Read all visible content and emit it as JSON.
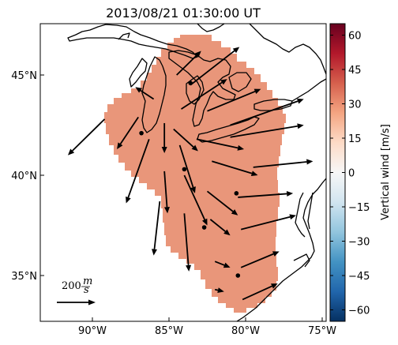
{
  "title": "2013/08/21 01:30:00 UT",
  "map": {
    "lon_range": [
      -94,
      -74.5
    ],
    "lat_range": [
      32.5,
      47.5
    ],
    "x_ticks": [
      {
        "lon": -90,
        "label": "90°W"
      },
      {
        "lon": -85,
        "label": "85°W"
      },
      {
        "lon": -80,
        "label": "80°W"
      },
      {
        "lon": -75,
        "label": "75°W"
      }
    ],
    "y_ticks": [
      {
        "lat": 45,
        "label": "45°N"
      },
      {
        "lat": 40,
        "label": "40°N"
      },
      {
        "lat": 35,
        "label": "35°N"
      }
    ],
    "field_color": "#e9967a",
    "coast_color": "#000000"
  },
  "reference_vector": {
    "label": "200",
    "unit_num": "m",
    "unit_den": "s"
  },
  "colorbar": {
    "label": "Vertical wind [m/s]",
    "min": -65,
    "max": 65,
    "ticks": [
      "60",
      "45",
      "30",
      "15",
      "0",
      "−15",
      "−30",
      "−45",
      "−60"
    ],
    "tick_values": [
      60,
      45,
      30,
      15,
      0,
      -15,
      -30,
      -45,
      -60
    ],
    "colormap": [
      "#053061",
      "#2166ac",
      "#4393c3",
      "#92c5de",
      "#d1e5f0",
      "#f7f7f7",
      "#fddbc7",
      "#f4a582",
      "#d6604d",
      "#b2182b",
      "#67001f"
    ]
  },
  "vectors": [
    {
      "lon": -84.5,
      "lat": 45.0,
      "dlon": 1.6,
      "dlat": 1.2
    },
    {
      "lon": -83.6,
      "lat": 44.5,
      "dlon": 3.2,
      "dlat": 1.9
    },
    {
      "lon": -86.0,
      "lat": 43.8,
      "dlon": -1.2,
      "dlat": 0.6
    },
    {
      "lon": -84.2,
      "lat": 43.3,
      "dlon": 3.0,
      "dlat": 1.5
    },
    {
      "lon": -82.5,
      "lat": 43.2,
      "dlon": 3.5,
      "dlat": 1.1
    },
    {
      "lon": -81.0,
      "lat": 42.5,
      "dlon": 4.8,
      "dlat": 1.3
    },
    {
      "lon": -89.2,
      "lat": 42.8,
      "dlon": -2.4,
      "dlat": -1.8
    },
    {
      "lon": -87.0,
      "lat": 42.9,
      "dlon": -1.4,
      "dlat": -1.6
    },
    {
      "lon": -84.7,
      "lat": 42.3,
      "dlon": 1.6,
      "dlat": -1.1
    },
    {
      "lon": -83.2,
      "lat": 41.8,
      "dlon": 3.1,
      "dlat": -0.5
    },
    {
      "lon": -81.0,
      "lat": 41.9,
      "dlon": 4.8,
      "dlat": 0.6
    },
    {
      "lon": -86.3,
      "lat": 41.8,
      "dlon": -1.5,
      "dlat": -3.2
    },
    {
      "lon": -85.3,
      "lat": 42.6,
      "dlon": 0.0,
      "dlat": -1.5
    },
    {
      "lon": -84.3,
      "lat": 41.5,
      "dlon": 1.0,
      "dlat": -2.4
    },
    {
      "lon": -82.2,
      "lat": 40.7,
      "dlon": 3.0,
      "dlat": -0.7
    },
    {
      "lon": -79.5,
      "lat": 40.4,
      "dlon": 3.9,
      "dlat": 0.3
    },
    {
      "lon": -85.3,
      "lat": 40.2,
      "dlon": 0.2,
      "dlat": -2.1
    },
    {
      "lon": -84.0,
      "lat": 40.0,
      "dlon": 1.5,
      "dlat": -2.5
    },
    {
      "lon": -82.5,
      "lat": 39.2,
      "dlon": 2.0,
      "dlat": -1.2
    },
    {
      "lon": -80.5,
      "lat": 38.9,
      "dlon": 3.6,
      "dlat": 0.2
    },
    {
      "lon": -85.6,
      "lat": 38.7,
      "dlon": -0.4,
      "dlat": -2.7
    },
    {
      "lon": -84.0,
      "lat": 38.1,
      "dlon": 0.3,
      "dlat": -2.9
    },
    {
      "lon": -82.3,
      "lat": 37.8,
      "dlon": 1.3,
      "dlat": -0.8
    },
    {
      "lon": -80.3,
      "lat": 37.3,
      "dlon": 3.6,
      "dlat": 0.7
    },
    {
      "lon": -82.0,
      "lat": 35.7,
      "dlon": 1.0,
      "dlat": -0.3
    },
    {
      "lon": -80.3,
      "lat": 35.4,
      "dlon": 2.5,
      "dlat": 0.8
    },
    {
      "lon": -82.0,
      "lat": 34.3,
      "dlon": 0.6,
      "dlat": -0.1
    },
    {
      "lon": -80.2,
      "lat": 33.8,
      "dlon": 2.3,
      "dlat": 0.8
    }
  ],
  "dots": [
    {
      "lon": -83.6,
      "lat": 44.6
    },
    {
      "lon": -86.8,
      "lat": 42.1
    },
    {
      "lon": -84.0,
      "lat": 40.3
    },
    {
      "lon": -80.6,
      "lat": 39.1
    },
    {
      "lon": -82.7,
      "lat": 37.4
    },
    {
      "lon": -80.5,
      "lat": 35.0
    }
  ]
}
